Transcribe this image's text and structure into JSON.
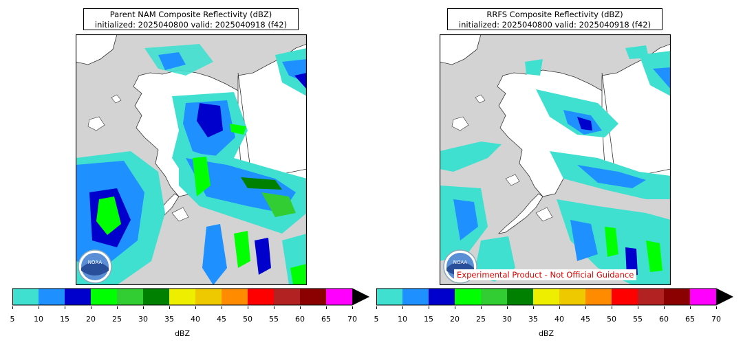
{
  "panels": [
    {
      "title": "Parent NAM Composite Reflectivity (dBZ)",
      "subtitle": "initialized: 2025040800 valid: 2025040918 (f42)",
      "logo_text": "NOAA",
      "colorbar_label": "dBZ"
    },
    {
      "title": "RRFS Composite Reflectivity (dBZ)",
      "subtitle": "initialized: 2025040800 valid: 2025040918 (f42)",
      "logo_text": "NOAA",
      "colorbar_label": "dBZ"
    }
  ],
  "disclaimer": "Experimental Product - Not Official Guidance",
  "colorbar": {
    "ticks": [
      "5",
      "10",
      "15",
      "20",
      "25",
      "30",
      "35",
      "40",
      "45",
      "50",
      "55",
      "60",
      "65",
      "70"
    ],
    "colors": [
      "#40e0d0",
      "#1e90ff",
      "#0000cd",
      "#00ff00",
      "#32cd32",
      "#008000",
      "#eeee00",
      "#eec900",
      "#ff8c00",
      "#ff0000",
      "#b22222",
      "#8b0000",
      "#ff00ff"
    ],
    "extend": "max"
  },
  "map_colors": {
    "ocean": "#d3d3d3",
    "land": "#ffffff"
  }
}
